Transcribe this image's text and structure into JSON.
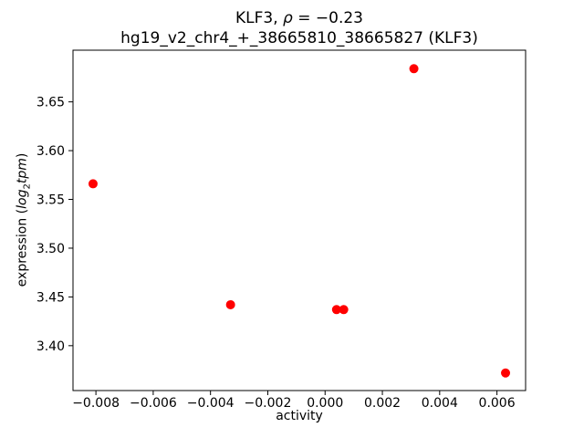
{
  "figure": {
    "title_line1": {
      "prefix": "KLF3, ",
      "rho": "ρ",
      "suffix": " = −0.23"
    },
    "title_line2": "hg19_v2_chr4_+_38665810_38665827 (KLF3)",
    "xlabel": "activity",
    "ylabel": {
      "prefix": "expression (",
      "log": "log",
      "log_sub": "2",
      "var": "tpm",
      "suffix": ")"
    }
  },
  "chart_data": {
    "type": "scatter",
    "title": "KLF3, ρ = −0.23\nhg19_v2_chr4_+_38665810_38665827 (KLF3)",
    "xlabel": "activity",
    "ylabel": "expression (log2 tpm)",
    "legend": "none",
    "grid": false,
    "marker_color": "#ff0000",
    "marker_radius_px": 5,
    "axis_color": "#000000",
    "background_color": "#ffffff",
    "xlim": [
      -0.0088,
      0.007
    ],
    "ylim": [
      3.354,
      3.703
    ],
    "x_ticks": {
      "values": [
        -0.008,
        -0.006,
        -0.004,
        -0.002,
        0.0,
        0.002,
        0.004,
        0.006
      ],
      "labels": [
        "−0.008",
        "−0.006",
        "−0.004",
        "−0.002",
        "0.000",
        "0.002",
        "0.004",
        "0.006"
      ]
    },
    "y_ticks": {
      "values": [
        3.4,
        3.45,
        3.5,
        3.55,
        3.6,
        3.65
      ],
      "labels": [
        "3.40",
        "3.45",
        "3.50",
        "3.55",
        "3.60",
        "3.65"
      ]
    },
    "points": [
      {
        "x": -0.0081,
        "y": 3.566
      },
      {
        "x": -0.0033,
        "y": 3.442
      },
      {
        "x": 0.0004,
        "y": 3.437
      },
      {
        "x": 0.00065,
        "y": 3.437
      },
      {
        "x": 0.0031,
        "y": 3.684
      },
      {
        "x": 0.0063,
        "y": 3.372
      }
    ]
  }
}
